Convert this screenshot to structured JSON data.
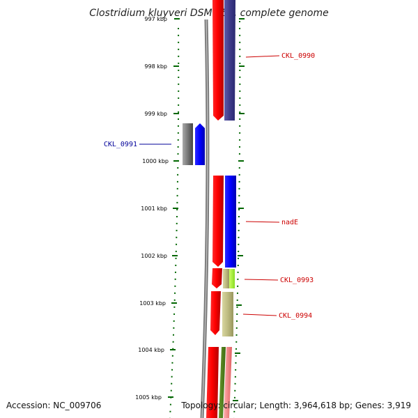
{
  "title": "Clostridium kluyveri DSM 555, complete genome",
  "ticks": [
    "997 kbp",
    "998 kbp",
    "999 kbp",
    "1000 kbp",
    "1001 kbp",
    "1002 kbp",
    "1003 kbp",
    "1004 kbp",
    "1005 kbp"
  ],
  "labels": {
    "ckl0990": "CKL_0990",
    "ckl0991": "CKL_0991",
    "nade": "nadE",
    "ckl0993": "CKL_0993",
    "ckl0994": "CKL_0994"
  },
  "footer": {
    "accession": "Accession: NC_009706",
    "topology": "Topology: circular; Length: 3,964,618 bp; Genes: 3,919"
  },
  "colors": {
    "red_label": "#cc0000",
    "blue_label": "#000099",
    "tick_green": "#006600"
  }
}
